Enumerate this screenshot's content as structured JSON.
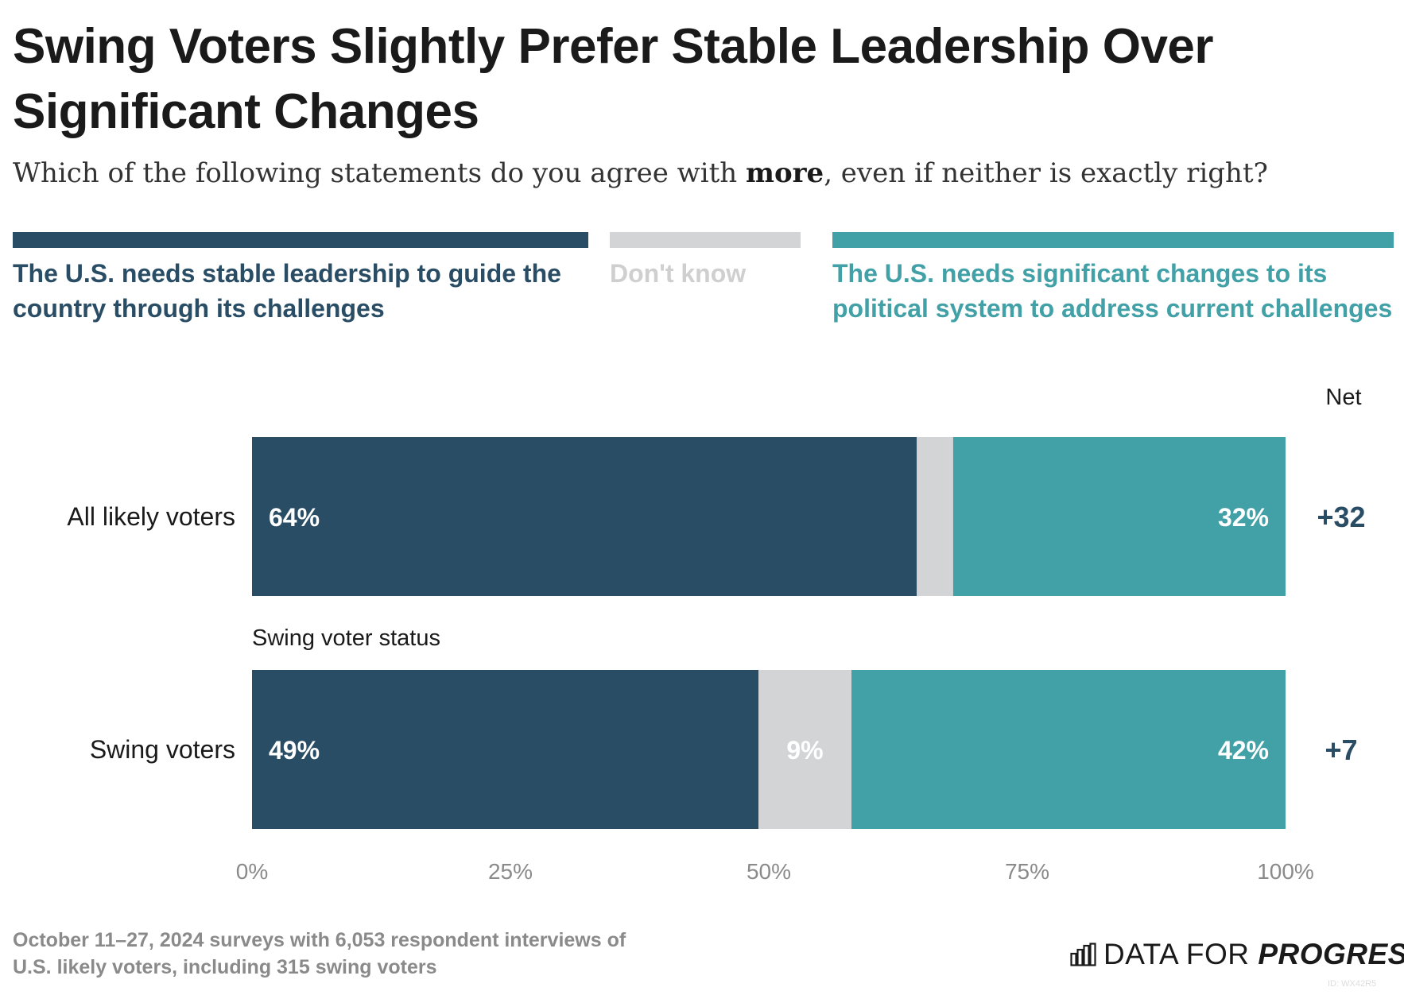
{
  "header": {
    "title": "Swing Voters Slightly Prefer Stable Leadership Over Significant Changes",
    "subtitle_before": "Which of the following statements do you agree with ",
    "subtitle_bold": "more",
    "subtitle_after": ", even if neither is exactly right?"
  },
  "legend": {
    "stable": "The U.S. needs stable leadership to guide the country through its challenges",
    "dont_know": "Don't know",
    "change": "The U.S. needs significant changes to its political system to address current challenges"
  },
  "colors": {
    "stable": "#2a4d66",
    "dont_know": "#d3d4d5",
    "change": "#42a0a7",
    "dont_know_text": "#cfcfcf",
    "axis": "#8a8a8a"
  },
  "net_header": "Net",
  "chart_data": {
    "type": "bar",
    "orientation": "horizontal",
    "stacked": true,
    "categories": [
      "All likely voters",
      "Swing voters"
    ],
    "group_label": "Swing voter status",
    "series": [
      {
        "name": "The U.S. needs stable leadership to guide the country through its challenges",
        "key": "stable",
        "values": [
          64,
          49
        ],
        "labels": [
          "64%",
          "49%"
        ]
      },
      {
        "name": "Don't know",
        "key": "dont_know",
        "values": [
          3.5,
          9
        ],
        "labels": [
          "",
          "9%"
        ]
      },
      {
        "name": "The U.S. needs significant changes to its political system to address current challenges",
        "key": "change",
        "values": [
          32,
          42
        ],
        "labels": [
          "32%",
          "42%"
        ]
      }
    ],
    "net": [
      "+32",
      "+7"
    ],
    "xlim": [
      0,
      100
    ],
    "xticks": [
      0,
      25,
      50,
      75,
      100
    ],
    "xtick_labels": [
      "0%",
      "25%",
      "50%",
      "75%",
      "100%"
    ]
  },
  "footnote": {
    "line1": "October 11–27, 2024 surveys with 6,053 respondent interviews of",
    "line2": "U.S. likely voters, including 315 swing voters"
  },
  "brand": {
    "part1": "DATA FOR ",
    "part2": "PROGRESS",
    "icon": "bar-chart-logo-icon"
  },
  "image_id": "ID: WX42R5"
}
